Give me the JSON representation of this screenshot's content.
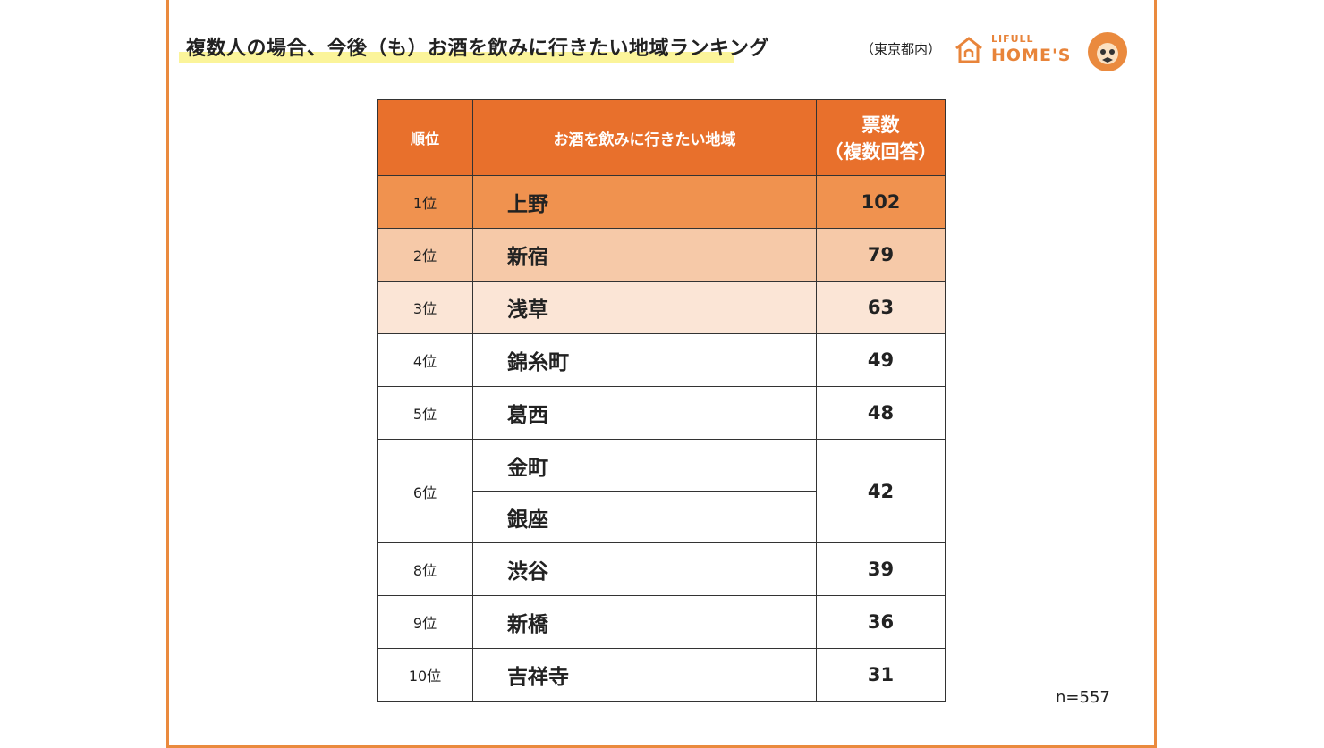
{
  "header": {
    "title": "複数人の場合、今後（も）お酒を飲みに行きたい地域ランキング",
    "subtitle": "（東京都内）",
    "logo": {
      "top": "LIFULL",
      "bottom": "HOME'S"
    }
  },
  "table": {
    "headers": [
      "順位",
      "お酒を飲みに行きたい地域",
      [
        "票数",
        "（複数回答）"
      ]
    ],
    "rows": [
      {
        "rank": "1位",
        "regions": [
          "上野"
        ],
        "votes": 102
      },
      {
        "rank": "2位",
        "regions": [
          "新宿"
        ],
        "votes": 79
      },
      {
        "rank": "3位",
        "regions": [
          "浅草"
        ],
        "votes": 63
      },
      {
        "rank": "4位",
        "regions": [
          "錦糸町"
        ],
        "votes": 49
      },
      {
        "rank": "5位",
        "regions": [
          "葛西"
        ],
        "votes": 48
      },
      {
        "rank": "6位",
        "regions": [
          "金町",
          "銀座"
        ],
        "votes": 42
      },
      {
        "rank": "8位",
        "regions": [
          "渋谷"
        ],
        "votes": 39
      },
      {
        "rank": "9位",
        "regions": [
          "新橋"
        ],
        "votes": 36
      },
      {
        "rank": "10位",
        "regions": [
          "吉祥寺"
        ],
        "votes": 31
      }
    ]
  },
  "note": "n=557"
}
